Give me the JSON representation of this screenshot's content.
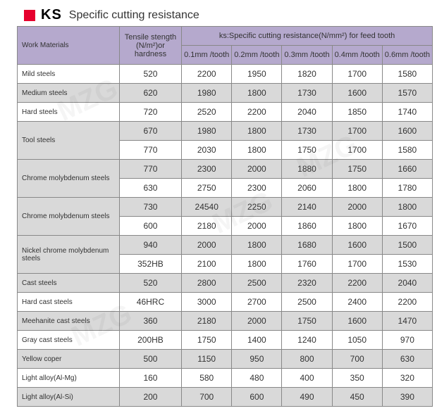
{
  "title": {
    "ks": "KS",
    "text": "Specific cutting resistance"
  },
  "header": {
    "work_materials": "Work Materials",
    "tensile": "Tensile stength (N/m²)or hardness",
    "ks_header": "ks:Specific cutting resistance(N/mm²) for feed tooth",
    "cols": [
      "0.1mm /tooth",
      "0.2mm /tooth",
      "0.3mm /tooth",
      "0.4mm /tooth",
      "0.6mm /tooth"
    ]
  },
  "rows": [
    {
      "mat": "Mild steels",
      "rs": 1,
      "tens": "520",
      "v": [
        "2200",
        "1950",
        "1820",
        "1700",
        "1580"
      ]
    },
    {
      "mat": "Medium steels",
      "rs": 1,
      "tens": "620",
      "v": [
        "1980",
        "1800",
        "1730",
        "1600",
        "1570"
      ]
    },
    {
      "mat": "Hard steels",
      "rs": 1,
      "tens": "720",
      "v": [
        "2520",
        "2200",
        "2040",
        "1850",
        "1740"
      ]
    },
    {
      "mat": "Tool steels",
      "rs": 2,
      "tens": "670",
      "v": [
        "1980",
        "1800",
        "1730",
        "1700",
        "1600"
      ]
    },
    {
      "tens": "770",
      "v": [
        "2030",
        "1800",
        "1750",
        "1700",
        "1580"
      ]
    },
    {
      "mat": "Chrome molybdenum steels",
      "rs": 2,
      "tens": "770",
      "v": [
        "2300",
        "2000",
        "1880",
        "1750",
        "1660"
      ]
    },
    {
      "tens": "630",
      "v": [
        "2750",
        "2300",
        "2060",
        "1800",
        "1780"
      ]
    },
    {
      "mat": "Chrome molybdenum steels",
      "rs": 2,
      "tens": "730",
      "v": [
        "24540",
        "2250",
        "2140",
        "2000",
        "1800"
      ]
    },
    {
      "tens": "600",
      "v": [
        "2180",
        "2000",
        "1860",
        "1800",
        "1670"
      ]
    },
    {
      "mat": "Nickel chrome molybdenum steels",
      "rs": 2,
      "tens": "940",
      "v": [
        "2000",
        "1800",
        "1680",
        "1600",
        "1500"
      ]
    },
    {
      "tens": "352HB",
      "v": [
        "2100",
        "1800",
        "1760",
        "1700",
        "1530"
      ]
    },
    {
      "mat": "Cast steels",
      "rs": 1,
      "tens": "520",
      "v": [
        "2800",
        "2500",
        "2320",
        "2200",
        "2040"
      ]
    },
    {
      "mat": "Hard cast steels",
      "rs": 1,
      "tens": "46HRC",
      "v": [
        "3000",
        "2700",
        "2500",
        "2400",
        "2200"
      ]
    },
    {
      "mat": "Meehanite cast steels",
      "rs": 1,
      "tens": "360",
      "v": [
        "2180",
        "2000",
        "1750",
        "1600",
        "1470"
      ]
    },
    {
      "mat": "Gray cast steels",
      "rs": 1,
      "tens": "200HB",
      "v": [
        "1750",
        "1400",
        "1240",
        "1050",
        "970"
      ]
    },
    {
      "mat": "Yellow coper",
      "rs": 1,
      "tens": "500",
      "v": [
        "1150",
        "950",
        "800",
        "700",
        "630"
      ]
    },
    {
      "mat": "Light alloy(Al-Mg)",
      "rs": 1,
      "tens": "160",
      "v": [
        "580",
        "480",
        "400",
        "350",
        "320"
      ]
    },
    {
      "mat": "Light alloy(Al-Si)",
      "rs": 1,
      "tens": "200",
      "v": [
        "700",
        "600",
        "490",
        "450",
        "390"
      ]
    }
  ],
  "colors": {
    "header_bg": "#b5a9cd",
    "row_alt": "#d9d9d9",
    "red": "#e6002d",
    "border": "#888888"
  }
}
